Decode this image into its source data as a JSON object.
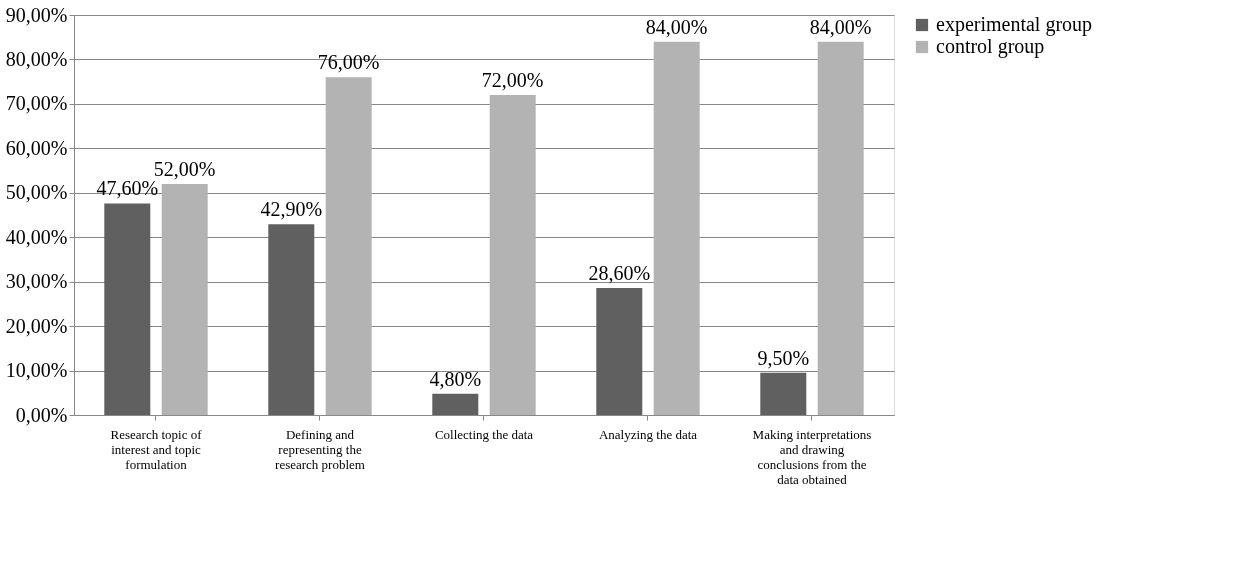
{
  "chart_data": {
    "type": "bar",
    "categories": [
      "Research topic of interest and topic formulation",
      "Defining and representing the research problem",
      "Collecting the data",
      "Analyzing the data",
      "Making interpretations and drawing conclusions from the data obtained"
    ],
    "series": [
      {
        "name": "experimental group",
        "color": "#606060",
        "values": [
          47.6,
          42.9,
          4.8,
          28.6,
          9.5
        ],
        "value_labels": [
          "47,60%",
          "42,90%",
          "4,80%",
          "28,60%",
          "9,50%"
        ]
      },
      {
        "name": "control group",
        "color": "#b3b3b3",
        "values": [
          52,
          76,
          72,
          84,
          84
        ],
        "value_labels": [
          "52,00%",
          "76,00%",
          "72,00%",
          "84,00%",
          "84,00%"
        ]
      }
    ],
    "ylim": [
      0,
      90
    ],
    "yticks": [
      {
        "value": 0,
        "label": "0,00%"
      },
      {
        "value": 10,
        "label": "10,00%"
      },
      {
        "value": 20,
        "label": "20,00%"
      },
      {
        "value": 30,
        "label": "30,00%"
      },
      {
        "value": 40,
        "label": "40,00%"
      },
      {
        "value": 50,
        "label": "50,00%"
      },
      {
        "value": 60,
        "label": "60,00%"
      },
      {
        "value": 70,
        "label": "70,00%"
      },
      {
        "value": 80,
        "label": "80,00%"
      },
      {
        "value": 90,
        "label": "90,00%"
      }
    ],
    "grid": "y",
    "legend": "right"
  }
}
